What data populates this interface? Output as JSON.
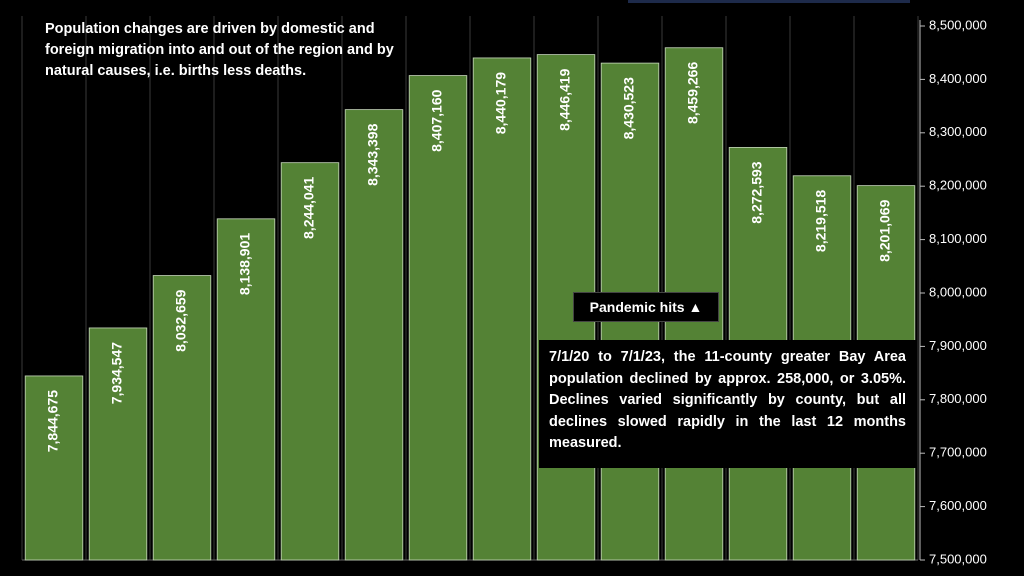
{
  "chart_data": {
    "type": "bar",
    "categories": [
      "",
      "",
      "",
      "",
      "",
      "",
      "",
      "",
      "",
      "",
      "",
      "",
      "",
      ""
    ],
    "values": [
      7844675,
      7934547,
      8032659,
      8138901,
      8244041,
      8343398,
      8407160,
      8440179,
      8446419,
      8430523,
      8459266,
      8272593,
      8219518,
      8201069
    ],
    "value_labels": [
      "7,844,675",
      "7,934,547",
      "8,032,659",
      "8,138,901",
      "8,244,041",
      "8,343,398",
      "8,407,160",
      "8,440,179",
      "8,446,419",
      "8,430,523",
      "8,459,266",
      "8,272,593",
      "8,219,518",
      "8,201,069"
    ],
    "ylim": [
      7500000,
      8500000
    ],
    "y_ticks": [
      7500000,
      7600000,
      7700000,
      7800000,
      7900000,
      8000000,
      8100000,
      8200000,
      8300000,
      8400000,
      8500000
    ],
    "y_tick_labels": [
      "7,500,000",
      "7,600,000",
      "7,700,000",
      "7,800,000",
      "7,900,000",
      "8,000,000",
      "8,100,000",
      "8,200,000",
      "8,300,000",
      "8,400,000",
      "8,500,000"
    ],
    "y_axis_side": "right",
    "grid": "vertical",
    "title": "",
    "xlabel": "",
    "ylabel": "",
    "bar_color": "#548235",
    "bar_edge_color": "#c9d9bd",
    "grid_color": "#3a3a3a",
    "text_color": "#ffffff"
  },
  "annotations": {
    "intro": "Population changes are driven by domestic and foreign migration into and out of the region and by natural causes, i.e. births less deaths.",
    "pandemic_label": "Pandemic hits ▲",
    "note": "7/1/20 to 7/1/23, the 11-county greater Bay Area population declined by approx. 258,000, or 3.05%. Declines varied significantly by county, but all declines slowed rapidly in the last 12 months measured."
  }
}
